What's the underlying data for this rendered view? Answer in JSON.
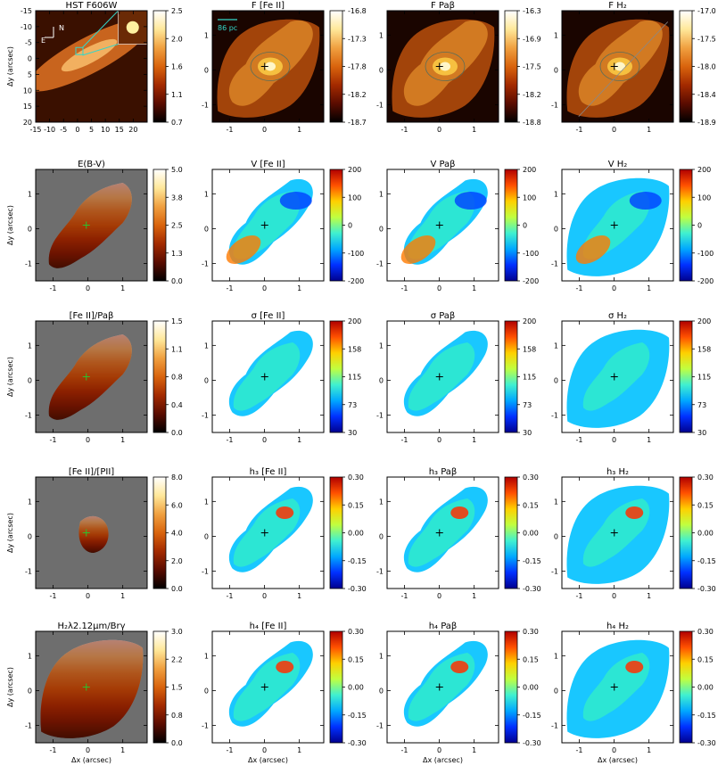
{
  "figure": {
    "y_axis_label": "Δy (arcsec)",
    "x_axis_label": "Δx (arcsec)",
    "scale_bar_label": "86 pc",
    "compass_north": "N",
    "compass_east": "E"
  },
  "colors": {
    "background_mask": "#6e6e6e",
    "contour": "#5a6e5a",
    "cyan_marker": "#33d6c9",
    "center_marker": "#000000"
  },
  "chart_data": [
    {
      "type": "heatmap",
      "title": "HST F606W",
      "colormap": "heat",
      "xlim": [
        -15,
        25
      ],
      "ylim": [
        20,
        -15
      ],
      "xticks": [
        -15,
        -10,
        -5,
        0,
        5,
        10,
        15,
        20
      ],
      "yticks": [
        -15,
        -10,
        -5,
        0,
        5,
        10,
        15,
        20
      ],
      "cbar_ticks": [
        "2.5",
        "2.0",
        "1.6",
        "1.1",
        "0.7"
      ]
    },
    {
      "type": "heatmap",
      "title": "F [Fe II]",
      "colormap": "heat",
      "xlim": [
        -1.5,
        1.7
      ],
      "ylim": [
        -1.5,
        1.7
      ],
      "xticks": [
        -1,
        0,
        1
      ],
      "yticks": [
        -1,
        0,
        1
      ],
      "cbar_ticks": [
        "-16.8",
        "-17.3",
        "-17.8",
        "-18.2",
        "-18.7"
      ]
    },
    {
      "type": "heatmap",
      "title": "F Paβ",
      "colormap": "heat",
      "xlim": [
        -1.5,
        1.7
      ],
      "ylim": [
        -1.5,
        1.7
      ],
      "xticks": [
        -1,
        0,
        1
      ],
      "yticks": [
        -1,
        0,
        1
      ],
      "cbar_ticks": [
        "-16.3",
        "-16.9",
        "-17.5",
        "-18.2",
        "-18.8"
      ]
    },
    {
      "type": "heatmap",
      "title": "F H₂",
      "colormap": "heat",
      "xlim": [
        -1.5,
        1.7
      ],
      "ylim": [
        -1.5,
        1.7
      ],
      "xticks": [
        -1,
        0,
        1
      ],
      "yticks": [
        -1,
        0,
        1
      ],
      "cbar_ticks": [
        "-17.0",
        "-17.5",
        "-18.0",
        "-18.4",
        "-18.9"
      ]
    },
    {
      "type": "heatmap",
      "title": "E(B-V)",
      "colormap": "heat",
      "xlim": [
        -1.5,
        1.7
      ],
      "ylim": [
        -1.5,
        1.7
      ],
      "xticks": [
        -1,
        0,
        1
      ],
      "yticks": [
        -1,
        0,
        1
      ],
      "cbar_ticks": [
        "5.0",
        "3.8",
        "2.5",
        "1.3",
        "0.0"
      ]
    },
    {
      "type": "heatmap",
      "title": "V [Fe II]",
      "colormap": "jet",
      "xlim": [
        -1.5,
        1.7
      ],
      "ylim": [
        -1.5,
        1.7
      ],
      "xticks": [
        -1,
        0,
        1
      ],
      "yticks": [
        -1,
        0,
        1
      ],
      "cbar_ticks": [
        "200",
        "100",
        "0",
        "-100",
        "-200"
      ]
    },
    {
      "type": "heatmap",
      "title": "V Paβ",
      "colormap": "jet",
      "xlim": [
        -1.5,
        1.7
      ],
      "ylim": [
        -1.5,
        1.7
      ],
      "xticks": [
        -1,
        0,
        1
      ],
      "yticks": [
        -1,
        0,
        1
      ],
      "cbar_ticks": [
        "200",
        "100",
        "0",
        "-100",
        "-200"
      ]
    },
    {
      "type": "heatmap",
      "title": "V H₂",
      "colormap": "jet",
      "xlim": [
        -1.5,
        1.7
      ],
      "ylim": [
        -1.5,
        1.7
      ],
      "xticks": [
        -1,
        0,
        1
      ],
      "yticks": [
        -1,
        0,
        1
      ],
      "cbar_ticks": [
        "200",
        "100",
        "0",
        "-100",
        "-200"
      ]
    },
    {
      "type": "heatmap",
      "title": "[Fe II]/Paβ",
      "colormap": "heat",
      "xlim": [
        -1.5,
        1.7
      ],
      "ylim": [
        -1.5,
        1.7
      ],
      "xticks": [
        -1,
        0,
        1
      ],
      "yticks": [
        -1,
        0,
        1
      ],
      "cbar_ticks": [
        "1.5",
        "1.1",
        "0.8",
        "0.4",
        "0.0"
      ]
    },
    {
      "type": "heatmap",
      "title": "σ [Fe II]",
      "colormap": "jet",
      "xlim": [
        -1.5,
        1.7
      ],
      "ylim": [
        -1.5,
        1.7
      ],
      "xticks": [
        -1,
        0,
        1
      ],
      "yticks": [
        -1,
        0,
        1
      ],
      "cbar_ticks": [
        "200",
        "158",
        "115",
        "73",
        "30"
      ]
    },
    {
      "type": "heatmap",
      "title": "σ Paβ",
      "colormap": "jet",
      "xlim": [
        -1.5,
        1.7
      ],
      "ylim": [
        -1.5,
        1.7
      ],
      "xticks": [
        -1,
        0,
        1
      ],
      "yticks": [
        -1,
        0,
        1
      ],
      "cbar_ticks": [
        "200",
        "158",
        "115",
        "73",
        "30"
      ]
    },
    {
      "type": "heatmap",
      "title": "σ H₂",
      "colormap": "jet",
      "xlim": [
        -1.5,
        1.7
      ],
      "ylim": [
        -1.5,
        1.7
      ],
      "xticks": [
        -1,
        0,
        1
      ],
      "yticks": [
        -1,
        0,
        1
      ],
      "cbar_ticks": [
        "200",
        "158",
        "115",
        "73",
        "30"
      ]
    },
    {
      "type": "heatmap",
      "title": "[Fe II]/[PII]",
      "colormap": "heat",
      "xlim": [
        -1.5,
        1.7
      ],
      "ylim": [
        -1.5,
        1.7
      ],
      "xticks": [
        -1,
        0,
        1
      ],
      "yticks": [
        -1,
        0,
        1
      ],
      "cbar_ticks": [
        "8.0",
        "6.0",
        "4.0",
        "2.0",
        "0.0"
      ]
    },
    {
      "type": "heatmap",
      "title": "h₃ [Fe II]",
      "colormap": "jet",
      "xlim": [
        -1.5,
        1.7
      ],
      "ylim": [
        -1.5,
        1.7
      ],
      "xticks": [
        -1,
        0,
        1
      ],
      "yticks": [
        -1,
        0,
        1
      ],
      "cbar_ticks": [
        "0.30",
        "0.15",
        "0.00",
        "-0.15",
        "-0.30"
      ]
    },
    {
      "type": "heatmap",
      "title": "h₃ Paβ",
      "colormap": "jet",
      "xlim": [
        -1.5,
        1.7
      ],
      "ylim": [
        -1.5,
        1.7
      ],
      "xticks": [
        -1,
        0,
        1
      ],
      "yticks": [
        -1,
        0,
        1
      ],
      "cbar_ticks": [
        "0.30",
        "0.15",
        "0.00",
        "-0.15",
        "-0.30"
      ]
    },
    {
      "type": "heatmap",
      "title": "h₃ H₂",
      "colormap": "jet",
      "xlim": [
        -1.5,
        1.7
      ],
      "ylim": [
        -1.5,
        1.7
      ],
      "xticks": [
        -1,
        0,
        1
      ],
      "yticks": [
        -1,
        0,
        1
      ],
      "cbar_ticks": [
        "0.30",
        "0.15",
        "0.00",
        "-0.15",
        "-0.30"
      ]
    },
    {
      "type": "heatmap",
      "title": "H₂λ2.12μm/Brγ",
      "colormap": "heat",
      "xlim": [
        -1.5,
        1.7
      ],
      "ylim": [
        -1.5,
        1.7
      ],
      "xticks": [
        -1,
        0,
        1
      ],
      "yticks": [
        -1,
        0,
        1
      ],
      "cbar_ticks": [
        "3.0",
        "2.2",
        "1.5",
        "0.8",
        "0.0"
      ]
    },
    {
      "type": "heatmap",
      "title": "h₄ [Fe II]",
      "colormap": "jet",
      "xlim": [
        -1.5,
        1.7
      ],
      "ylim": [
        -1.5,
        1.7
      ],
      "xticks": [
        -1,
        0,
        1
      ],
      "yticks": [
        -1,
        0,
        1
      ],
      "cbar_ticks": [
        "0.30",
        "0.15",
        "0.00",
        "-0.15",
        "-0.30"
      ]
    },
    {
      "type": "heatmap",
      "title": "h₄ Paβ",
      "colormap": "jet",
      "xlim": [
        -1.5,
        1.7
      ],
      "ylim": [
        -1.5,
        1.7
      ],
      "xticks": [
        -1,
        0,
        1
      ],
      "yticks": [
        -1,
        0,
        1
      ],
      "cbar_ticks": [
        "0.30",
        "0.15",
        "0.00",
        "-0.15",
        "-0.30"
      ]
    },
    {
      "type": "heatmap",
      "title": "h₄ H₂",
      "colormap": "jet",
      "xlim": [
        -1.5,
        1.7
      ],
      "ylim": [
        -1.5,
        1.7
      ],
      "xticks": [
        -1,
        0,
        1
      ],
      "yticks": [
        -1,
        0,
        1
      ],
      "cbar_ticks": [
        "0.30",
        "0.15",
        "0.00",
        "-0.15",
        "-0.30"
      ]
    }
  ]
}
